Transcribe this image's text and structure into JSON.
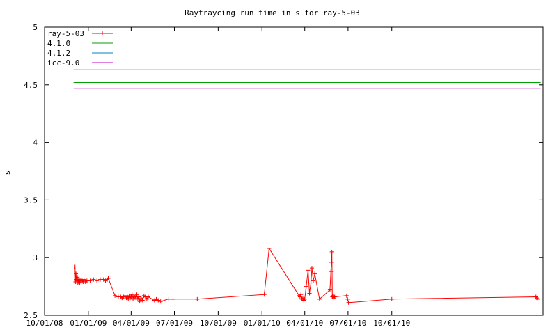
{
  "chart_data": {
    "type": "line",
    "title": "Raytraycing run time in s for ray-5-03",
    "xlabel": "",
    "ylabel": "s",
    "x_type": "date",
    "xlim": [
      "2008-10-01",
      "2011-08-15"
    ],
    "ylim": [
      2.5,
      5
    ],
    "yticks": [
      2.5,
      3,
      3.5,
      4,
      4.5,
      5
    ],
    "ytick_labels": [
      "2.5",
      "3",
      "3.5",
      "4",
      "4.5",
      "5"
    ],
    "xticks": [
      "2008-10-01",
      "2009-01-01",
      "2009-04-01",
      "2009-07-01",
      "2009-10-01",
      "2010-01-01",
      "2010-04-01",
      "2010-07-01",
      "2010-10-01"
    ],
    "xtick_labels": [
      "10/01/08",
      "01/01/09",
      "04/01/09",
      "07/01/09",
      "10/01/09",
      "01/01/10",
      "04/01/10",
      "07/01/10",
      "10/01/10"
    ],
    "grid": false,
    "legend_position": "top-left",
    "series": [
      {
        "name": "ray-5-03",
        "color": "#ff0000",
        "marker": "plus",
        "x": [
          "2008-12-04",
          "2008-12-05",
          "2008-12-06",
          "2008-12-07",
          "2008-12-08",
          "2008-12-09",
          "2008-12-10",
          "2008-12-11",
          "2008-12-12",
          "2008-12-13",
          "2008-12-14",
          "2008-12-15",
          "2008-12-17",
          "2008-12-19",
          "2008-12-21",
          "2008-12-23",
          "2008-12-26",
          "2008-12-29",
          "2009-01-05",
          "2009-01-12",
          "2009-01-19",
          "2009-01-26",
          "2009-02-02",
          "2009-02-06",
          "2009-02-10",
          "2009-02-12",
          "2009-02-26",
          "2009-03-05",
          "2009-03-10",
          "2009-03-13",
          "2009-03-16",
          "2009-03-19",
          "2009-03-22",
          "2009-03-24",
          "2009-03-26",
          "2009-03-28",
          "2009-03-30",
          "2009-04-01",
          "2009-04-03",
          "2009-04-05",
          "2009-04-07",
          "2009-04-09",
          "2009-04-11",
          "2009-04-13",
          "2009-04-15",
          "2009-04-17",
          "2009-04-19",
          "2009-04-22",
          "2009-04-25",
          "2009-04-28",
          "2009-05-01",
          "2009-05-04",
          "2009-05-07",
          "2009-05-20",
          "2009-05-24",
          "2009-05-28",
          "2009-06-02",
          "2009-06-18",
          "2009-06-28",
          "2009-08-18",
          "2010-01-06",
          "2010-01-16",
          "2010-03-20",
          "2010-03-22",
          "2010-03-24",
          "2010-03-26",
          "2010-03-28",
          "2010-03-30",
          "2010-04-01",
          "2010-04-04",
          "2010-04-08",
          "2010-04-11",
          "2010-04-14",
          "2010-04-16",
          "2010-04-19",
          "2010-04-22",
          "2010-05-02",
          "2010-05-24",
          "2010-05-26",
          "2010-05-27",
          "2010-05-28",
          "2010-05-29",
          "2010-05-30",
          "2010-06-01",
          "2010-06-03",
          "2010-06-28",
          "2010-06-30",
          "2010-07-02",
          "2010-10-01",
          "2011-07-31",
          "2011-08-02",
          "2011-08-04"
        ],
        "y": [
          2.92,
          2.79,
          2.86,
          2.81,
          2.8,
          2.83,
          2.78,
          2.8,
          2.79,
          2.81,
          2.78,
          2.8,
          2.81,
          2.8,
          2.79,
          2.81,
          2.79,
          2.8,
          2.8,
          2.81,
          2.8,
          2.81,
          2.81,
          2.8,
          2.81,
          2.82,
          2.67,
          2.66,
          2.66,
          2.65,
          2.66,
          2.67,
          2.65,
          2.66,
          2.64,
          2.67,
          2.65,
          2.66,
          2.68,
          2.64,
          2.67,
          2.66,
          2.65,
          2.68,
          2.64,
          2.66,
          2.62,
          2.65,
          2.63,
          2.67,
          2.66,
          2.64,
          2.66,
          2.63,
          2.64,
          2.63,
          2.62,
          2.64,
          2.64,
          2.64,
          2.68,
          3.08,
          2.67,
          2.66,
          2.68,
          2.64,
          2.65,
          2.63,
          2.64,
          2.75,
          2.89,
          2.69,
          2.78,
          2.91,
          2.8,
          2.86,
          2.64,
          2.72,
          2.88,
          2.96,
          3.05,
          2.66,
          2.67,
          2.65,
          2.66,
          2.67,
          2.64,
          2.61,
          2.64,
          2.66,
          2.65,
          2.64
        ]
      },
      {
        "name": "4.1.0",
        "color": "#00a000",
        "x": [
          "2008-12-01",
          "2011-08-10"
        ],
        "y": [
          4.52,
          4.52
        ]
      },
      {
        "name": "4.1.2",
        "color": "#0080c0",
        "x": [
          "2008-12-01",
          "2011-08-10"
        ],
        "y": [
          4.63,
          4.63
        ]
      },
      {
        "name": "icc-9.0",
        "color": "#c000c0",
        "x": [
          "2008-12-01",
          "2011-08-10"
        ],
        "y": [
          4.47,
          4.47
        ]
      }
    ]
  }
}
